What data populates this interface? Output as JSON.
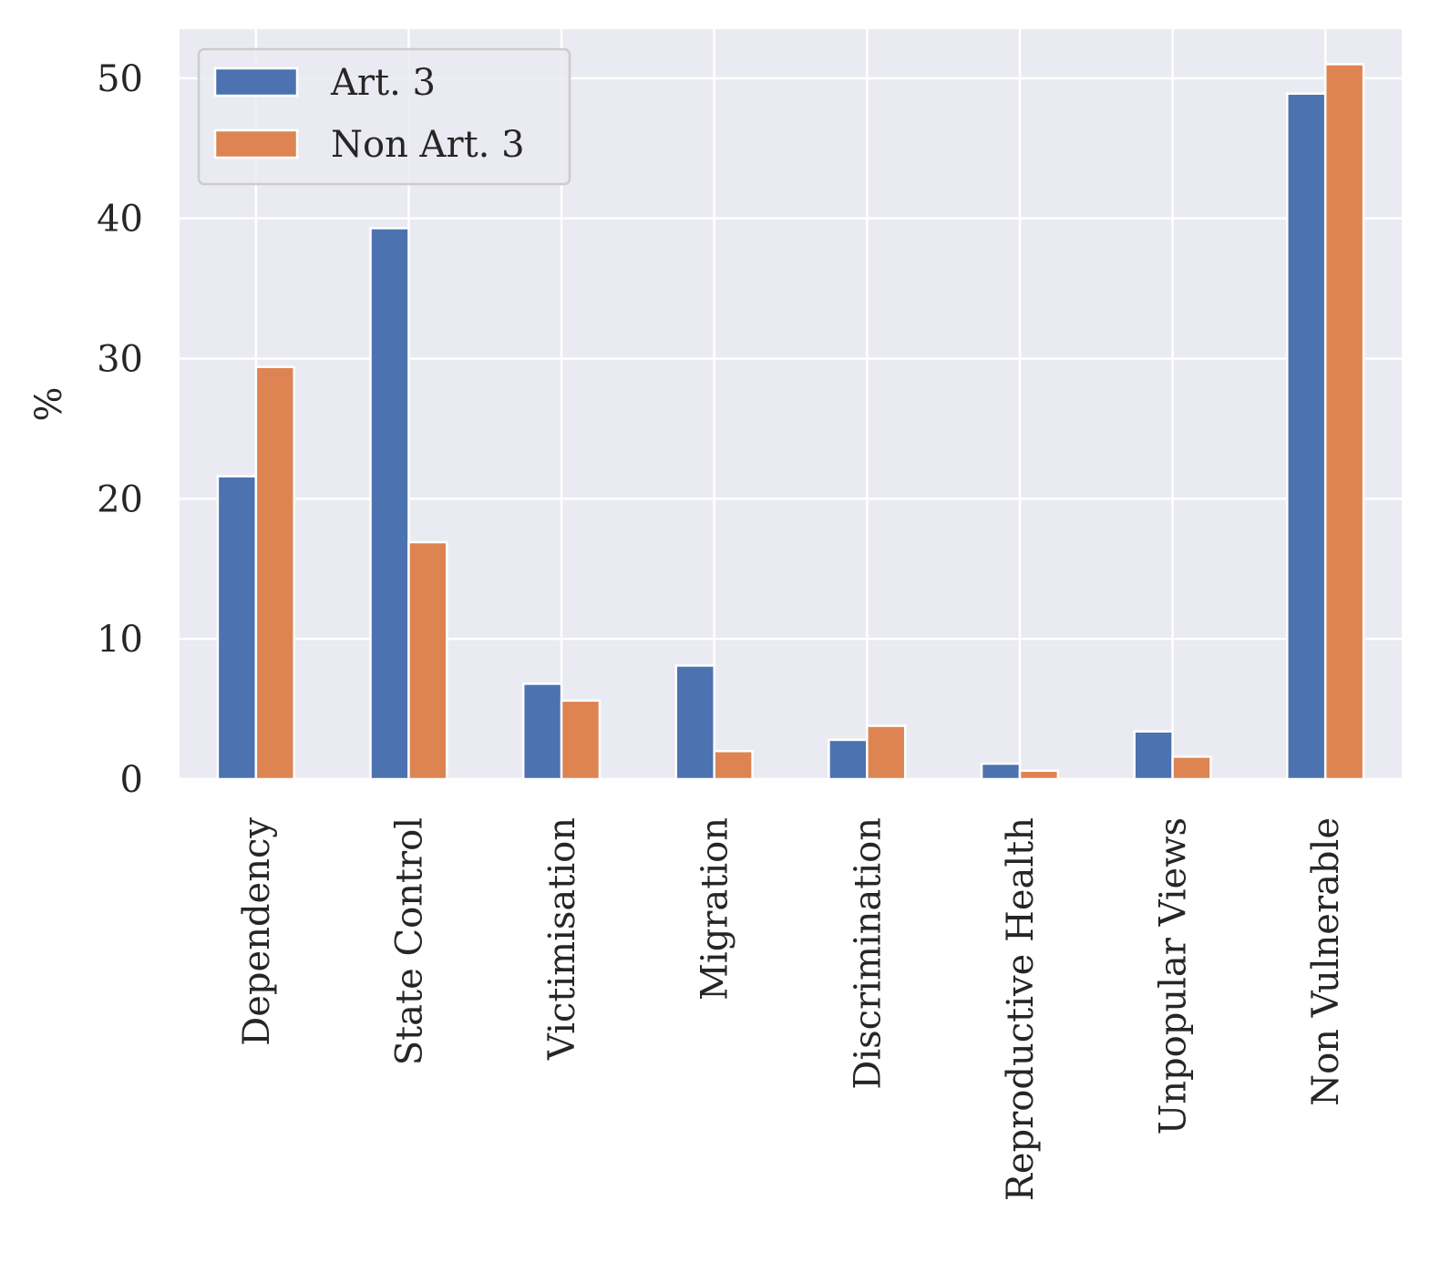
{
  "chart_data": {
    "type": "bar",
    "categories": [
      "Dependency",
      "State Control",
      "Victimisation",
      "Migration",
      "Discrimination",
      "Reproductive Health",
      "Unpopular Views",
      "Non Vulnerable"
    ],
    "series": [
      {
        "name": "Art. 3",
        "color": "#4c72b0",
        "values": [
          21.6,
          39.3,
          6.8,
          8.1,
          2.8,
          1.1,
          3.4,
          48.9
        ]
      },
      {
        "name": "Non Art. 3",
        "color": "#dd8452",
        "values": [
          29.4,
          16.9,
          5.6,
          2.0,
          3.8,
          0.6,
          1.6,
          51.0
        ]
      }
    ],
    "title": "",
    "xlabel": "",
    "ylabel": "%",
    "ylim": [
      0,
      53.5
    ],
    "yticks": [
      0,
      10,
      20,
      30,
      40,
      50
    ],
    "grid": true,
    "legend": "top-left",
    "background": "#eaeaf2",
    "grid_color": "#ffffff"
  }
}
